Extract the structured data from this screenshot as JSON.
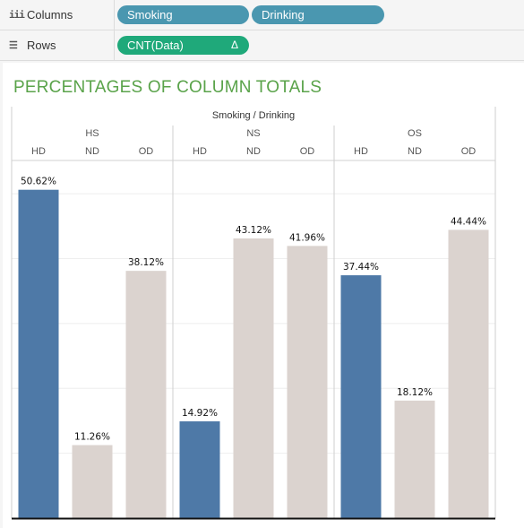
{
  "shelves": {
    "columns": {
      "label": "Columns",
      "pills": [
        "Smoking",
        "Drinking"
      ]
    },
    "rows": {
      "label": "Rows",
      "pills": [
        "CNT(Data)"
      ],
      "delta": "Δ"
    }
  },
  "colors": {
    "highlight": "#4e79a7",
    "other": "#dbd3cf",
    "title": "#5aa34a"
  },
  "chart_data": {
    "type": "bar",
    "title": "PERCENTAGES OF COLUMN TOTALS",
    "header_label": "Smoking  /  Drinking",
    "groups": [
      "HS",
      "NS",
      "OS"
    ],
    "categories": [
      "HD",
      "ND",
      "OD"
    ],
    "values": [
      [
        50.62,
        11.26,
        38.12
      ],
      [
        14.92,
        43.12,
        41.96
      ],
      [
        37.44,
        18.12,
        44.44
      ]
    ],
    "labels": [
      [
        "50.62%",
        "11.26%",
        "38.12%"
      ],
      [
        "14.92%",
        "43.12%",
        "41.96%"
      ],
      [
        "37.44%",
        "18.12%",
        "44.44%"
      ]
    ],
    "highlighted": [
      [
        true,
        false,
        false
      ],
      [
        true,
        false,
        false
      ],
      [
        true,
        false,
        false
      ]
    ],
    "ylim": [
      0,
      55
    ],
    "grid": true
  }
}
